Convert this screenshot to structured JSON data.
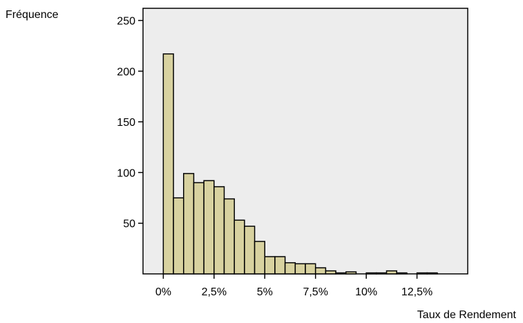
{
  "chart_data": {
    "type": "bar",
    "ylabel": "Fréquence",
    "xlabel": "Taux de Rendement",
    "bin_width": 0.5,
    "bin_starts": [
      0,
      0.5,
      1,
      1.5,
      2,
      2.5,
      3,
      3.5,
      4,
      4.5,
      5,
      5.5,
      6,
      6.5,
      7,
      7.5,
      8,
      8.5,
      9,
      9.5,
      10,
      10.5,
      11,
      11.5,
      12,
      12.5,
      13
    ],
    "values": [
      217,
      75,
      99,
      90,
      92,
      86,
      74,
      53,
      47,
      32,
      17,
      17,
      11,
      10,
      10,
      6,
      3,
      1,
      2,
      0,
      1,
      1,
      3,
      1,
      0,
      1,
      1
    ],
    "xlim": [
      -1,
      15
    ],
    "ylim": [
      0,
      262
    ],
    "x_ticks": [
      0,
      2.5,
      5,
      7.5,
      10,
      12.5
    ],
    "x_tick_labels": [
      "0%",
      "2,5%",
      "5%",
      "7,5%",
      "10%",
      "12,5%"
    ],
    "y_ticks": [
      50,
      100,
      150,
      200,
      250
    ],
    "y_tick_labels": [
      "50",
      "100",
      "150",
      "200",
      "250"
    ],
    "bar_color": "#d8d2a0",
    "plot_background": "#ededed",
    "grid": false
  }
}
